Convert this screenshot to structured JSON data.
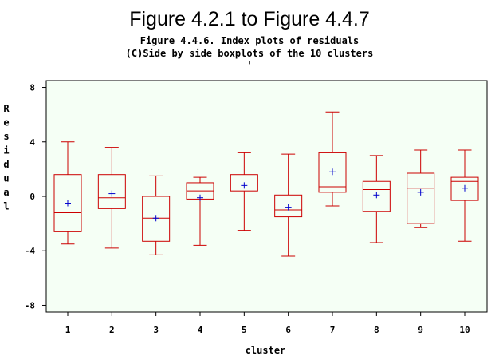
{
  "title": "Figure 4.2.1 to Figure 4.4.7",
  "subtitle_lines": [
    "Figure 4.4.6. Index plots of residuals",
    "(C)Side by side boxplots of the 10 clusters",
    "'"
  ],
  "colors": {
    "box": "#cc0000",
    "mean": "#0000cc",
    "plot_bg": "#f5fff5",
    "axis": "#000000"
  },
  "chart_data": {
    "type": "boxplot",
    "xlabel": "cluster",
    "ylabel": "Residual",
    "ylim": [
      -8.5,
      8.5
    ],
    "yticks": [
      -8,
      -4,
      0,
      4,
      8
    ],
    "categories": [
      "1",
      "2",
      "3",
      "4",
      "5",
      "6",
      "7",
      "8",
      "9",
      "10"
    ],
    "boxes": [
      {
        "cluster": "1",
        "min": -3.5,
        "q1": -2.6,
        "median": -1.2,
        "q3": 1.6,
        "max": 4.0,
        "mean": -0.5
      },
      {
        "cluster": "2",
        "min": -3.8,
        "q1": -0.9,
        "median": -0.1,
        "q3": 1.6,
        "max": 3.6,
        "mean": 0.2
      },
      {
        "cluster": "3",
        "min": -4.3,
        "q1": -3.3,
        "median": -1.6,
        "q3": 0.0,
        "max": 1.5,
        "mean": -1.6
      },
      {
        "cluster": "4",
        "min": -3.6,
        "q1": -0.2,
        "median": 0.4,
        "q3": 1.0,
        "max": 1.4,
        "mean": -0.1
      },
      {
        "cluster": "5",
        "min": -2.5,
        "q1": 0.4,
        "median": 1.2,
        "q3": 1.6,
        "max": 3.2,
        "mean": 0.8
      },
      {
        "cluster": "6",
        "min": -4.4,
        "q1": -1.5,
        "median": -1.0,
        "q3": 0.1,
        "max": 3.1,
        "mean": -0.8
      },
      {
        "cluster": "7",
        "min": -0.7,
        "q1": 0.3,
        "median": 0.7,
        "q3": 3.2,
        "max": 6.2,
        "mean": 1.8
      },
      {
        "cluster": "8",
        "min": -3.4,
        "q1": -1.1,
        "median": 0.5,
        "q3": 1.1,
        "max": 3.0,
        "mean": 0.1
      },
      {
        "cluster": "9",
        "min": -2.3,
        "q1": -2.0,
        "median": 0.6,
        "q3": 1.7,
        "max": 3.4,
        "mean": 0.3
      },
      {
        "cluster": "10",
        "min": -3.3,
        "q1": -0.3,
        "median": 1.1,
        "q3": 1.4,
        "max": 3.4,
        "mean": 0.6
      }
    ]
  }
}
